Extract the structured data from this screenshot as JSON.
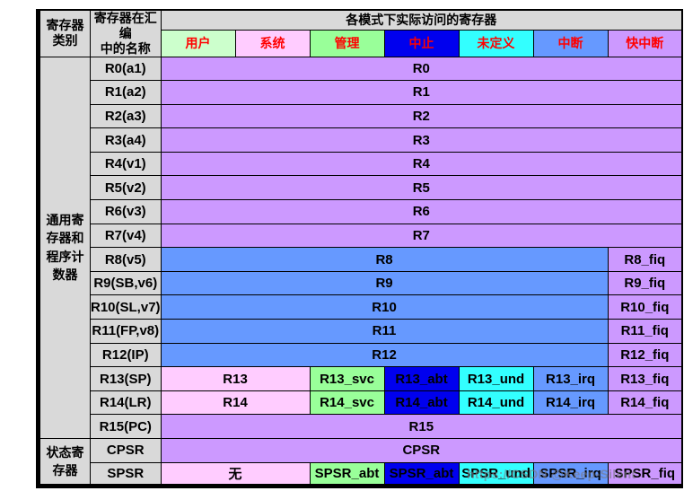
{
  "palette": {
    "gray": "#D9D9D9",
    "purple": "#CC99FF",
    "blue": "#6699FF",
    "pink": "#FFCCFF",
    "ltgreen": "#CCFFCC",
    "green": "#99FF99",
    "darkblue": "#0000EE",
    "cyan": "#33FFFF",
    "mode_text": "#FF0000",
    "grid": "#000000"
  },
  "header": {
    "col_category": "寄存器\n类别",
    "col_asm_name": "寄存器在汇编\n中的名称",
    "modes_title": "各模式下实际访问的寄存器",
    "modes": [
      {
        "id": "user",
        "label": "用户",
        "bg": "ltgreen"
      },
      {
        "id": "system",
        "label": "系统",
        "bg": "pink"
      },
      {
        "id": "supervisor",
        "label": "管理",
        "bg": "green"
      },
      {
        "id": "abort",
        "label": "中止",
        "bg": "darkblue"
      },
      {
        "id": "undefined",
        "label": "未定义",
        "bg": "cyan"
      },
      {
        "id": "irq",
        "label": "中断",
        "bg": "blue"
      },
      {
        "id": "fiq",
        "label": "快中断",
        "bg": "purple"
      }
    ]
  },
  "groups": [
    {
      "label": "通用寄\n存器和\n程序计\n数器",
      "start": 0,
      "rows": 16
    },
    {
      "label": "状态寄\n存器",
      "start": 16,
      "rows": 2
    }
  ],
  "rows": [
    {
      "name": "R0(a1)",
      "cells": [
        {
          "text": "R0",
          "span": 7,
          "bg": "purple"
        }
      ]
    },
    {
      "name": "R1(a2)",
      "cells": [
        {
          "text": "R1",
          "span": 7,
          "bg": "purple"
        }
      ]
    },
    {
      "name": "R2(a3)",
      "cells": [
        {
          "text": "R2",
          "span": 7,
          "bg": "purple"
        }
      ]
    },
    {
      "name": "R3(a4)",
      "cells": [
        {
          "text": "R3",
          "span": 7,
          "bg": "purple"
        }
      ]
    },
    {
      "name": "R4(v1)",
      "cells": [
        {
          "text": "R4",
          "span": 7,
          "bg": "purple"
        }
      ]
    },
    {
      "name": "R5(v2)",
      "cells": [
        {
          "text": "R5",
          "span": 7,
          "bg": "purple"
        }
      ]
    },
    {
      "name": "R6(v3)",
      "cells": [
        {
          "text": "R6",
          "span": 7,
          "bg": "purple"
        }
      ]
    },
    {
      "name": "R7(v4)",
      "cells": [
        {
          "text": "R7",
          "span": 7,
          "bg": "purple"
        }
      ]
    },
    {
      "name": "R8(v5)",
      "cells": [
        {
          "text": "R8",
          "span": 6,
          "bg": "blue"
        },
        {
          "text": "R8_fiq",
          "span": 1,
          "bg": "purple"
        }
      ]
    },
    {
      "name": "R9(SB,v6)",
      "cells": [
        {
          "text": "R9",
          "span": 6,
          "bg": "blue"
        },
        {
          "text": "R9_fiq",
          "span": 1,
          "bg": "purple"
        }
      ]
    },
    {
      "name": "R10(SL,v7)",
      "cells": [
        {
          "text": "R10",
          "span": 6,
          "bg": "blue"
        },
        {
          "text": "R10_fiq",
          "span": 1,
          "bg": "purple"
        }
      ]
    },
    {
      "name": "R11(FP,v8)",
      "cells": [
        {
          "text": "R11",
          "span": 6,
          "bg": "blue"
        },
        {
          "text": "R11_fiq",
          "span": 1,
          "bg": "purple"
        }
      ]
    },
    {
      "name": "R12(IP)",
      "cells": [
        {
          "text": "R12",
          "span": 6,
          "bg": "blue"
        },
        {
          "text": "R12_fiq",
          "span": 1,
          "bg": "purple"
        }
      ]
    },
    {
      "name": "R13(SP)",
      "cells": [
        {
          "text": "R13",
          "span": 2,
          "bg": "pink"
        },
        {
          "text": "R13_svc",
          "span": 1,
          "bg": "green"
        },
        {
          "text": "R13_abt",
          "span": 1,
          "bg": "darkblue"
        },
        {
          "text": "R13_und",
          "span": 1,
          "bg": "cyan"
        },
        {
          "text": "R13_irq",
          "span": 1,
          "bg": "blue"
        },
        {
          "text": "R13_fiq",
          "span": 1,
          "bg": "purple"
        }
      ]
    },
    {
      "name": "R14(LR)",
      "cells": [
        {
          "text": "R14",
          "span": 2,
          "bg": "pink"
        },
        {
          "text": "R14_svc",
          "span": 1,
          "bg": "green"
        },
        {
          "text": "R14_abt",
          "span": 1,
          "bg": "darkblue"
        },
        {
          "text": "R14_und",
          "span": 1,
          "bg": "cyan"
        },
        {
          "text": "R14_irq",
          "span": 1,
          "bg": "blue"
        },
        {
          "text": "R14_fiq",
          "span": 1,
          "bg": "purple"
        }
      ]
    },
    {
      "name": "R15(PC)",
      "cells": [
        {
          "text": "R15",
          "span": 7,
          "bg": "purple"
        }
      ]
    },
    {
      "name": "CPSR",
      "cells": [
        {
          "text": "CPSR",
          "span": 7,
          "bg": "purple"
        }
      ]
    },
    {
      "name": "SPSR",
      "cells": [
        {
          "text": "无",
          "span": 2,
          "bg": "pink"
        },
        {
          "text": "SPSR_abt",
          "span": 1,
          "bg": "green"
        },
        {
          "text": "SPSR_abt",
          "span": 1,
          "bg": "darkblue"
        },
        {
          "text": "SPSR_und",
          "span": 1,
          "bg": "cyan"
        },
        {
          "text": "SPSR_irq",
          "span": 1,
          "bg": "blue"
        },
        {
          "text": "SPSR_fiq",
          "span": 1,
          "bg": "purple"
        }
      ]
    }
  ],
  "watermark": "https://CSDN @Keep-Silent"
}
